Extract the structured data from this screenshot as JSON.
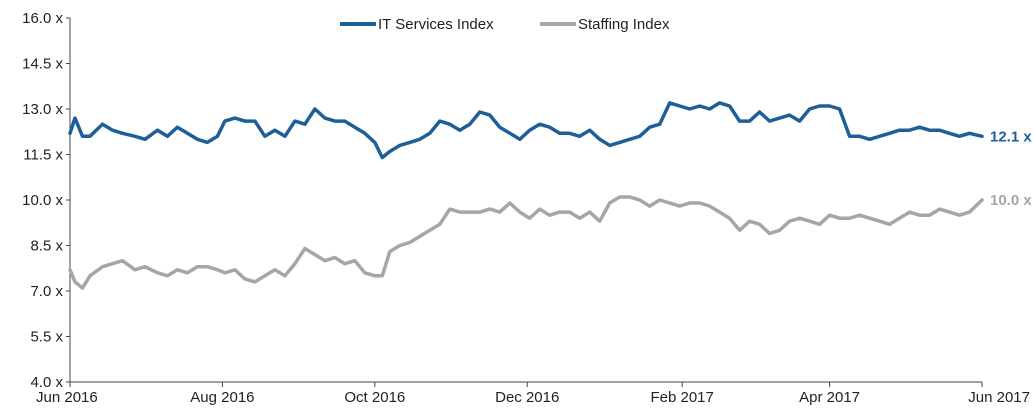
{
  "chart_data": {
    "type": "line",
    "title": "",
    "xlabel": "",
    "ylabel": "",
    "ylim": [
      4.0,
      16.0
    ],
    "y_ticks": [
      "4.0 x",
      "5.5 x",
      "7.0 x",
      "8.5 x",
      "10.0 x",
      "11.5 x",
      "13.0 x",
      "14.5 x",
      "16.0 x"
    ],
    "y_tick_values": [
      4.0,
      5.5,
      7.0,
      8.5,
      10.0,
      11.5,
      13.0,
      14.5,
      16.0
    ],
    "x_ticks": [
      "Jun 2016",
      "Aug 2016",
      "Oct 2016",
      "Dec 2016",
      "Feb 2017",
      "Apr 2017",
      "Jun 2017"
    ],
    "x_tick_values": [
      "2016-06-01",
      "2016-08-01",
      "2016-10-01",
      "2016-12-01",
      "2017-02-01",
      "2017-04-01",
      "2017-06-01"
    ],
    "xlim": [
      "2016-06-01",
      "2017-06-01"
    ],
    "grid": false,
    "legend_position": "top-center",
    "series": [
      {
        "name": "IT Services Index",
        "color": "#1f5f99",
        "end_label": "12.1 x",
        "x": [
          "2016-06-01",
          "2016-06-03",
          "2016-06-06",
          "2016-06-09",
          "2016-06-14",
          "2016-06-18",
          "2016-06-22",
          "2016-06-27",
          "2016-07-01",
          "2016-07-06",
          "2016-07-10",
          "2016-07-14",
          "2016-07-18",
          "2016-07-22",
          "2016-07-26",
          "2016-07-30",
          "2016-08-02",
          "2016-08-06",
          "2016-08-10",
          "2016-08-14",
          "2016-08-18",
          "2016-08-22",
          "2016-08-26",
          "2016-08-30",
          "2016-09-03",
          "2016-09-07",
          "2016-09-11",
          "2016-09-15",
          "2016-09-19",
          "2016-09-23",
          "2016-09-27",
          "2016-10-01",
          "2016-10-04",
          "2016-10-07",
          "2016-10-11",
          "2016-10-15",
          "2016-10-19",
          "2016-10-23",
          "2016-10-27",
          "2016-10-31",
          "2016-11-04",
          "2016-11-08",
          "2016-11-12",
          "2016-11-16",
          "2016-11-20",
          "2016-11-24",
          "2016-11-28",
          "2016-12-02",
          "2016-12-06",
          "2016-12-10",
          "2016-12-14",
          "2016-12-18",
          "2016-12-22",
          "2016-12-26",
          "2016-12-30",
          "2017-01-03",
          "2017-01-07",
          "2017-01-11",
          "2017-01-15",
          "2017-01-19",
          "2017-01-23",
          "2017-01-27",
          "2017-01-31",
          "2017-02-04",
          "2017-02-08",
          "2017-02-12",
          "2017-02-16",
          "2017-02-20",
          "2017-02-24",
          "2017-02-28",
          "2017-03-04",
          "2017-03-08",
          "2017-03-12",
          "2017-03-16",
          "2017-03-20",
          "2017-03-24",
          "2017-03-28",
          "2017-04-01",
          "2017-04-05",
          "2017-04-09",
          "2017-04-13",
          "2017-04-17",
          "2017-04-21",
          "2017-04-25",
          "2017-04-29",
          "2017-05-03",
          "2017-05-07",
          "2017-05-11",
          "2017-05-15",
          "2017-05-19",
          "2017-05-23",
          "2017-05-27",
          "2017-06-01"
        ],
        "values": [
          12.2,
          12.7,
          12.1,
          12.1,
          12.5,
          12.3,
          12.2,
          12.1,
          12.0,
          12.3,
          12.1,
          12.4,
          12.2,
          12.0,
          11.9,
          12.1,
          12.6,
          12.7,
          12.6,
          12.6,
          12.1,
          12.3,
          12.1,
          12.6,
          12.5,
          13.0,
          12.7,
          12.6,
          12.6,
          12.4,
          12.2,
          11.9,
          11.4,
          11.6,
          11.8,
          11.9,
          12.0,
          12.2,
          12.6,
          12.5,
          12.3,
          12.5,
          12.9,
          12.8,
          12.4,
          12.2,
          12.0,
          12.3,
          12.5,
          12.4,
          12.2,
          12.2,
          12.1,
          12.3,
          12.0,
          11.8,
          11.9,
          12.0,
          12.1,
          12.4,
          12.5,
          13.2,
          13.1,
          13.0,
          13.1,
          13.0,
          13.2,
          13.1,
          12.6,
          12.6,
          12.9,
          12.6,
          12.7,
          12.8,
          12.6,
          13.0,
          13.1,
          13.1,
          13.0,
          12.1,
          12.1,
          12.0,
          12.1,
          12.2,
          12.3,
          12.3,
          12.4,
          12.3,
          12.3,
          12.2,
          12.1,
          12.2,
          12.1
        ]
      },
      {
        "name": "Staffing Index",
        "color": "#a6a6a6",
        "end_label": "10.0 x",
        "x": [
          "2016-06-01",
          "2016-06-03",
          "2016-06-06",
          "2016-06-09",
          "2016-06-14",
          "2016-06-18",
          "2016-06-22",
          "2016-06-27",
          "2016-07-01",
          "2016-07-06",
          "2016-07-10",
          "2016-07-14",
          "2016-07-18",
          "2016-07-22",
          "2016-07-26",
          "2016-07-30",
          "2016-08-02",
          "2016-08-06",
          "2016-08-10",
          "2016-08-14",
          "2016-08-18",
          "2016-08-22",
          "2016-08-26",
          "2016-08-30",
          "2016-09-03",
          "2016-09-07",
          "2016-09-11",
          "2016-09-15",
          "2016-09-19",
          "2016-09-23",
          "2016-09-27",
          "2016-10-01",
          "2016-10-04",
          "2016-10-07",
          "2016-10-11",
          "2016-10-15",
          "2016-10-19",
          "2016-10-23",
          "2016-10-27",
          "2016-10-31",
          "2016-11-04",
          "2016-11-08",
          "2016-11-12",
          "2016-11-16",
          "2016-11-20",
          "2016-11-24",
          "2016-11-28",
          "2016-12-02",
          "2016-12-06",
          "2016-12-10",
          "2016-12-14",
          "2016-12-18",
          "2016-12-22",
          "2016-12-26",
          "2016-12-30",
          "2017-01-03",
          "2017-01-07",
          "2017-01-11",
          "2017-01-15",
          "2017-01-19",
          "2017-01-23",
          "2017-01-27",
          "2017-01-31",
          "2017-02-04",
          "2017-02-08",
          "2017-02-12",
          "2017-02-16",
          "2017-02-20",
          "2017-02-24",
          "2017-02-28",
          "2017-03-04",
          "2017-03-08",
          "2017-03-12",
          "2017-03-16",
          "2017-03-20",
          "2017-03-24",
          "2017-03-28",
          "2017-04-01",
          "2017-04-05",
          "2017-04-09",
          "2017-04-13",
          "2017-04-17",
          "2017-04-21",
          "2017-04-25",
          "2017-04-29",
          "2017-05-03",
          "2017-05-07",
          "2017-05-11",
          "2017-05-15",
          "2017-05-19",
          "2017-05-23",
          "2017-05-27",
          "2017-06-01"
        ],
        "values": [
          7.7,
          7.3,
          7.1,
          7.5,
          7.8,
          7.9,
          8.0,
          7.7,
          7.8,
          7.6,
          7.5,
          7.7,
          7.6,
          7.8,
          7.8,
          7.7,
          7.6,
          7.7,
          7.4,
          7.3,
          7.5,
          7.7,
          7.5,
          7.9,
          8.4,
          8.2,
          8.0,
          8.1,
          7.9,
          8.0,
          7.6,
          7.5,
          7.5,
          8.3,
          8.5,
          8.6,
          8.8,
          9.0,
          9.2,
          9.7,
          9.6,
          9.6,
          9.6,
          9.7,
          9.6,
          9.9,
          9.6,
          9.4,
          9.7,
          9.5,
          9.6,
          9.6,
          9.4,
          9.6,
          9.3,
          9.9,
          10.1,
          10.1,
          10.0,
          9.8,
          10.0,
          9.9,
          9.8,
          9.9,
          9.9,
          9.8,
          9.6,
          9.4,
          9.0,
          9.3,
          9.2,
          8.9,
          9.0,
          9.3,
          9.4,
          9.3,
          9.2,
          9.5,
          9.4,
          9.4,
          9.5,
          9.4,
          9.3,
          9.2,
          9.4,
          9.6,
          9.5,
          9.5,
          9.7,
          9.6,
          9.5,
          9.6,
          10.0
        ]
      }
    ]
  }
}
